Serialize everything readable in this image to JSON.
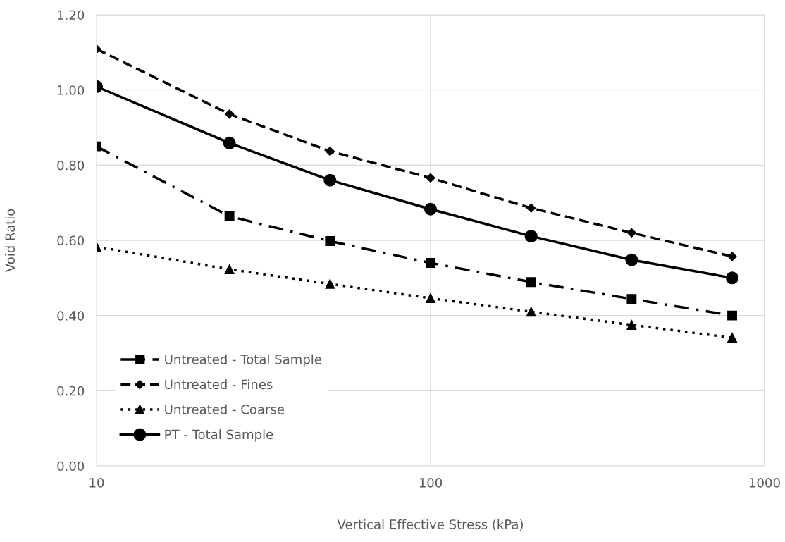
{
  "chart_data": {
    "type": "line",
    "xlabel": "Vertical Effective Stress (kPa)",
    "ylabel": "Void Ratio",
    "x": [
      10,
      25,
      50,
      100,
      200,
      400,
      800
    ],
    "log": "x",
    "xlim": [
      10,
      1000
    ],
    "xticks": [
      10,
      100,
      1000
    ],
    "ylim": [
      0,
      1.2
    ],
    "yticks": [
      {
        "value": 0,
        "label": "0.00"
      },
      {
        "value": 0.2,
        "label": "0.20"
      },
      {
        "value": 0.4,
        "label": "0.40"
      },
      {
        "value": 0.6,
        "label": "0.60"
      },
      {
        "value": 0.8,
        "label": "0.80"
      },
      {
        "value": 1.0,
        "label": "1.00"
      },
      {
        "value": 1.2,
        "label": "1.20"
      }
    ],
    "grid": true,
    "legend": "bottom left",
    "series": [
      {
        "name": "Untreated - Total Sample",
        "color": "#000000",
        "marker": "square",
        "line_style": "dashdot",
        "values": [
          0.85,
          0.664,
          0.598,
          0.54,
          0.489,
          0.444,
          0.4
        ]
      },
      {
        "name": "Untreated - Fines",
        "color": "#000000",
        "marker": "diamond",
        "line_style": "dashed",
        "values": [
          1.109,
          0.936,
          0.837,
          0.766,
          0.686,
          0.62,
          0.557
        ]
      },
      {
        "name": "Untreated - Coarse",
        "color": "#000000",
        "marker": "triangle",
        "line_style": "dotted",
        "values": [
          0.583,
          0.523,
          0.484,
          0.446,
          0.41,
          0.375,
          0.341
        ]
      },
      {
        "name": "PT - Total Sample",
        "color": "#000000",
        "marker": "circle",
        "line_style": "solid",
        "values": [
          1.009,
          0.859,
          0.76,
          0.683,
          0.611,
          0.548,
          0.5
        ]
      }
    ]
  }
}
